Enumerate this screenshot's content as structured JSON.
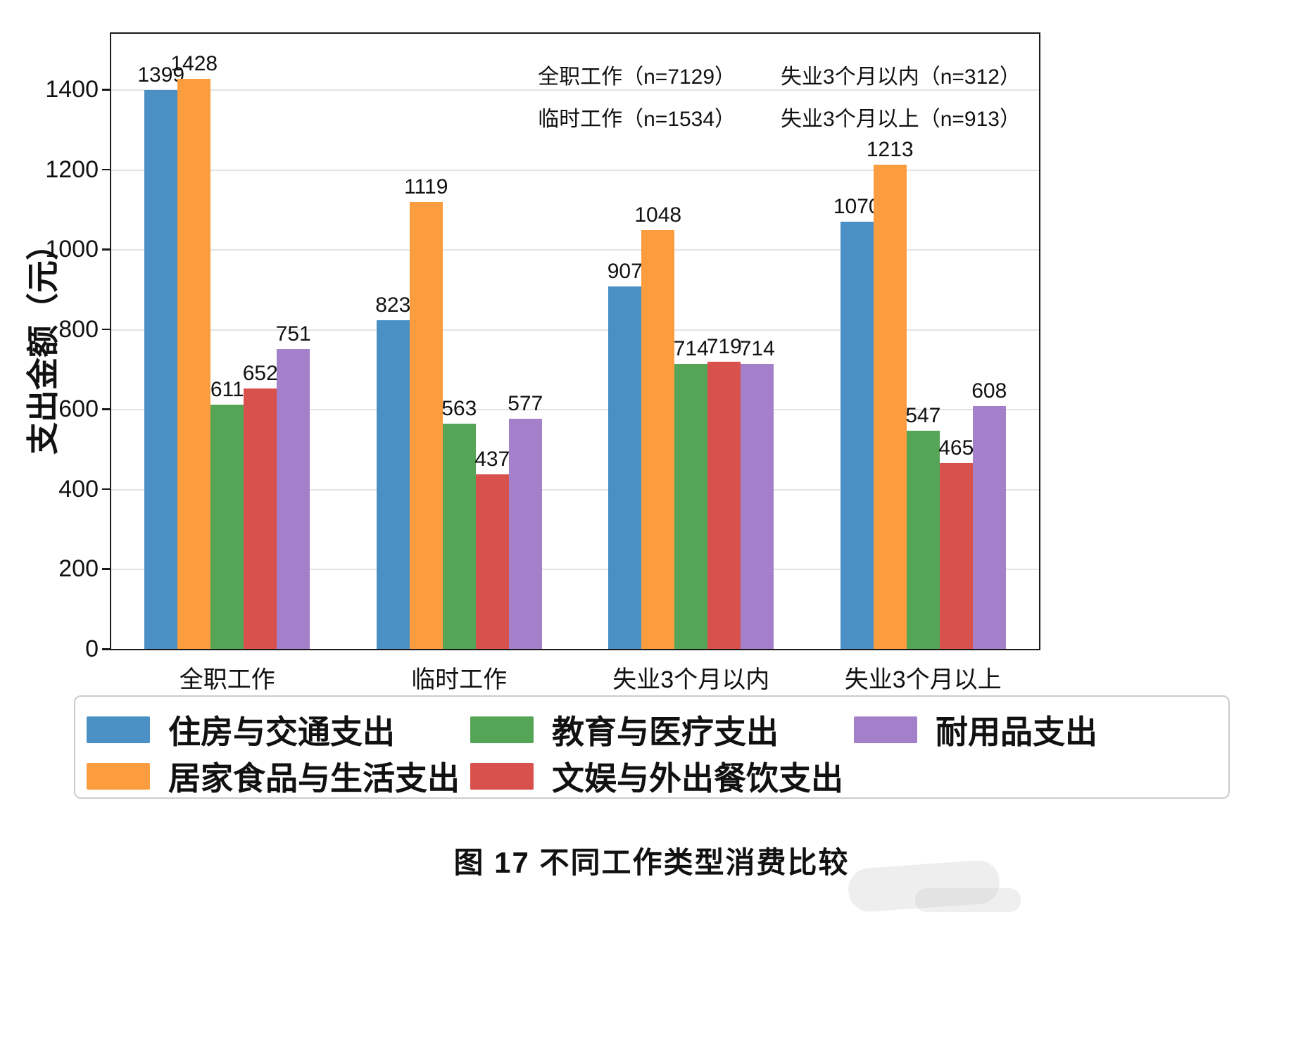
{
  "figure": {
    "caption": "图 17 不同工作类型消费比较"
  },
  "chart_data": {
    "type": "bar",
    "title": "",
    "xlabel": "",
    "ylabel": "支出金额（元）",
    "ylim": [
      0,
      1540
    ],
    "yticks": [
      0,
      200,
      400,
      600,
      800,
      1000,
      1200,
      1400
    ],
    "grid": true,
    "legend_position": "bottom",
    "categories": [
      "全职工作",
      "临时工作",
      "失业3个月以内",
      "失业3个月以上"
    ],
    "series": [
      {
        "name": "住房与交通支出",
        "color": "#4a90c4",
        "values": [
          1399,
          823,
          907,
          1070
        ]
      },
      {
        "name": "居家食品与生活支出",
        "color": "#fb9d3f",
        "values": [
          1428,
          1119,
          1048,
          1213
        ]
      },
      {
        "name": "教育与医疗支出",
        "color": "#55a557",
        "values": [
          611,
          563,
          714,
          547
        ]
      },
      {
        "name": "文娱与外出餐饮支出",
        "color": "#d8514d",
        "values": [
          652,
          437,
          719,
          465
        ]
      },
      {
        "name": "耐用品支出",
        "color": "#a380c9",
        "values": [
          751,
          577,
          714,
          608
        ]
      }
    ],
    "annotations": [
      [
        "全职工作（n=7129）",
        "失业3个月以内（n=312）"
      ],
      [
        "临时工作（n=1534）",
        "失业3个月以上（n=913）"
      ]
    ]
  }
}
